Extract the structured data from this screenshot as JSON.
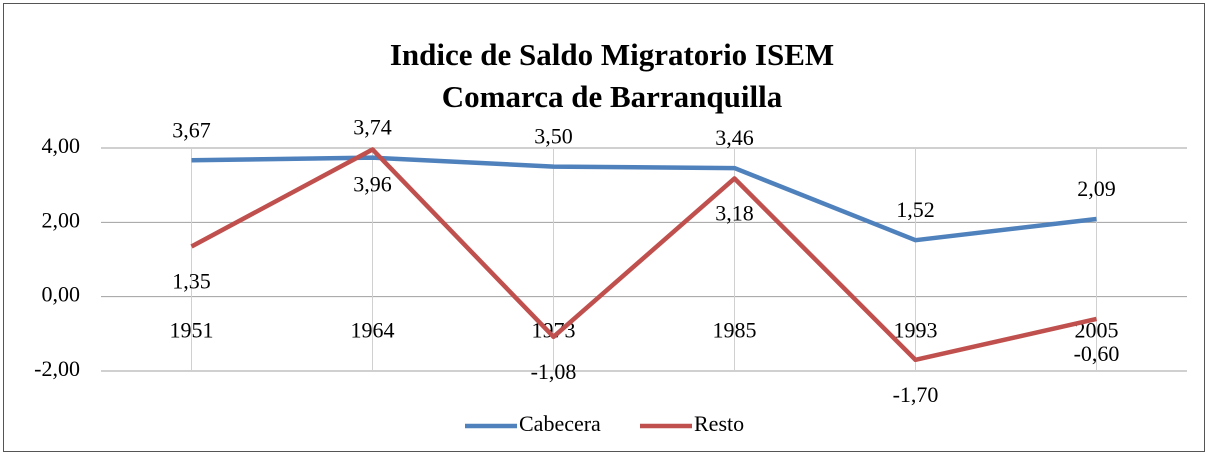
{
  "chart_data": {
    "type": "line",
    "title": "Indice de Saldo Migratorio ISEM",
    "subtitle": "Comarca de Barranquilla",
    "categories": [
      "1951",
      "1964",
      "1973",
      "1985",
      "1993",
      "2005"
    ],
    "series": [
      {
        "name": "Cabecera",
        "color": "#4f81bd",
        "values": [
          3.67,
          3.74,
          3.5,
          3.46,
          1.52,
          2.09
        ],
        "value_labels": [
          "3,67",
          "3,74",
          "3,50",
          "3,46",
          "1,52",
          "2,09"
        ]
      },
      {
        "name": "Resto",
        "color": "#c0504d",
        "values": [
          1.35,
          3.96,
          -1.08,
          3.18,
          -1.7,
          -0.6
        ],
        "value_labels": [
          "1,35",
          "3,96",
          "-1,08",
          "3,18",
          "-1,70",
          "-0,60"
        ]
      }
    ],
    "ylim": [
      -2,
      4
    ],
    "yticks": [
      {
        "value": -2,
        "label": "-2,00"
      },
      {
        "value": 0,
        "label": "0,00"
      },
      {
        "value": 2,
        "label": "2,00"
      },
      {
        "value": 4,
        "label": "4,00"
      }
    ],
    "grid": true,
    "legend": "bottom"
  }
}
